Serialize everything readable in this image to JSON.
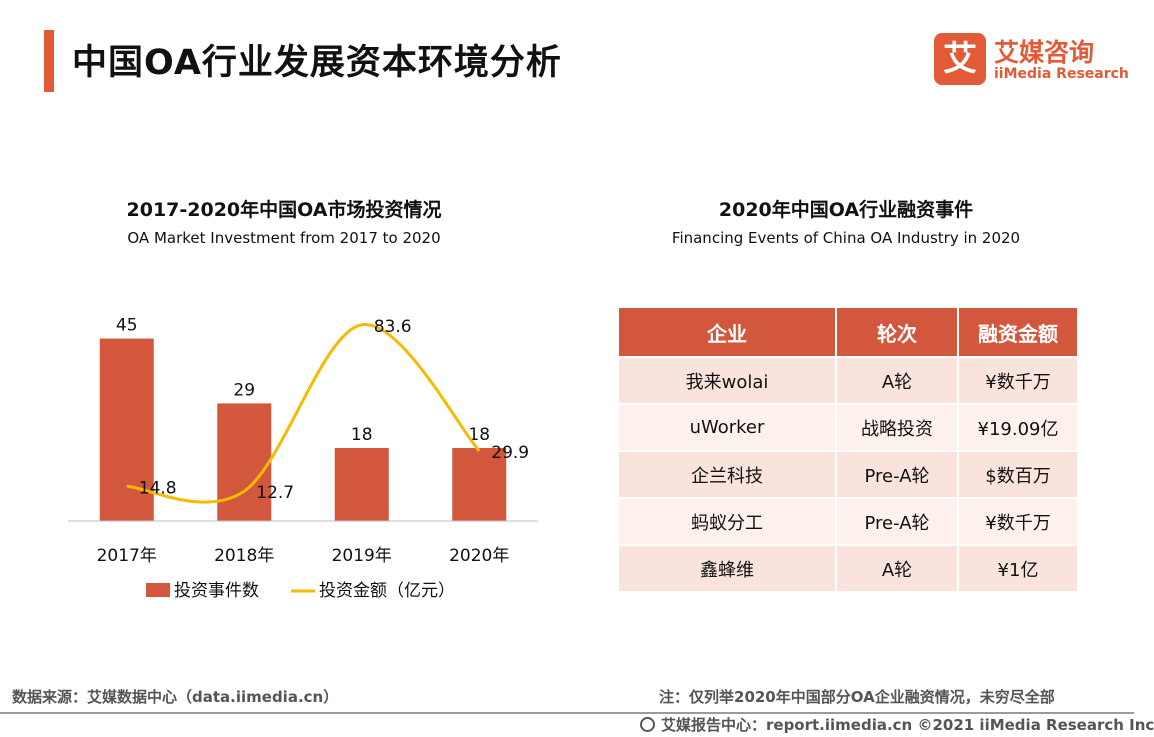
{
  "header": {
    "title": "中国OA行业发展资本环境分析",
    "logo": {
      "mark": "艾",
      "cn": "艾媒咨询",
      "en": "iiMedia Research"
    }
  },
  "left_panel": {
    "title": "2017-2020年中国OA市场投资情况",
    "subtitle": "OA Market Investment from 2017 to 2020"
  },
  "right_panel": {
    "title": "2020年中国OA行业融资事件",
    "subtitle": "Financing Events of China OA Industry in 2020",
    "table": {
      "headers": [
        "企业",
        "轮次",
        "融资金额"
      ],
      "rows": [
        [
          "我来wolai",
          "A轮",
          "¥数千万"
        ],
        [
          "uWorker",
          "战略投资",
          "¥19.09亿"
        ],
        [
          "企兰科技",
          "Pre-A轮",
          "$数百万"
        ],
        [
          "蚂蚁分工",
          "Pre-A轮",
          "¥数千万"
        ],
        [
          "鑫蜂维",
          "A轮",
          "¥1亿"
        ]
      ]
    }
  },
  "chart_data": {
    "type": "bar",
    "title": "2017-2020年中国OA市场投资情况",
    "subtitle": "OA Market Investment from 2017 to 2020",
    "categories": [
      "2017年",
      "2018年",
      "2019年",
      "2020年"
    ],
    "series": [
      {
        "name": "投资事件数",
        "type": "bar",
        "values": [
          45,
          29,
          18,
          18
        ],
        "color": "#d2573c"
      },
      {
        "name": "投资金额（亿元）",
        "type": "line",
        "values": [
          14.8,
          12.7,
          83.6,
          29.9
        ],
        "color": "#f5bb00"
      }
    ],
    "bar_ylim": [
      0,
      55
    ],
    "line_ylim": [
      0,
      95
    ],
    "legend_position": "bottom",
    "grid": false
  },
  "footer": {
    "source": "数据来源：艾媒数据中心（data.iimedia.cn）",
    "note": "注：仅列举2020年中国部分OA企业融资情况，未穷尽全部",
    "copyright": "艾媒报告中心：report.iimedia.cn ©2021  iiMedia Research  Inc"
  }
}
